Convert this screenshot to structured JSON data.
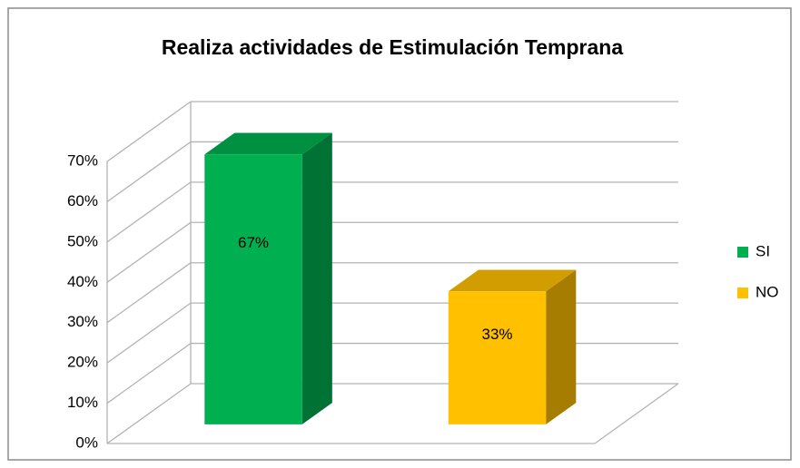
{
  "chart_data": {
    "type": "bar3d",
    "title": "Realiza actividades de Estimulación Temprana",
    "categories": [
      "SI",
      "NO"
    ],
    "values": [
      67,
      33
    ],
    "value_labels": [
      "67%",
      "33%"
    ],
    "colors": [
      "#00b050",
      "#ffc000"
    ],
    "ylim": [
      0,
      70
    ],
    "yticks": [
      {
        "value": 0,
        "label": "0%"
      },
      {
        "value": 10,
        "label": "10%"
      },
      {
        "value": 20,
        "label": "20%"
      },
      {
        "value": 30,
        "label": "30%"
      },
      {
        "value": 40,
        "label": "40%"
      },
      {
        "value": 50,
        "label": "50%"
      },
      {
        "value": 60,
        "label": "60%"
      },
      {
        "value": 70,
        "label": "70%"
      }
    ],
    "grid": true,
    "legend": "right"
  }
}
